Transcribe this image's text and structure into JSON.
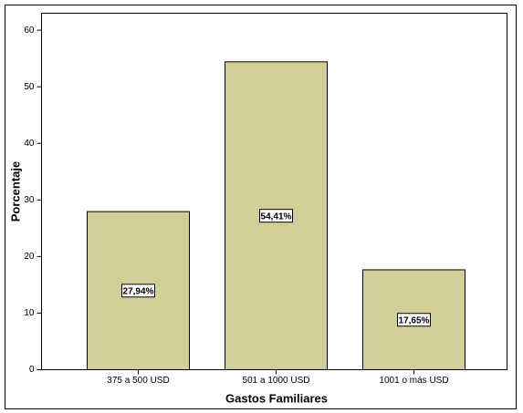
{
  "chart_data": {
    "type": "bar",
    "x_label": "Gastos Familiares",
    "y_label": "Porcentaje",
    "categories": [
      "375 a 500 USD",
      "501 a 1000 USD",
      "1001 o más USD"
    ],
    "values": [
      27.94,
      54.41,
      17.65
    ],
    "value_labels": [
      "27,94%",
      "54,41%",
      "17,65%"
    ],
    "color": "#d3ce97",
    "ylim": [
      0,
      63
    ],
    "yticks": [
      0,
      10,
      20,
      30,
      40,
      50,
      60
    ],
    "grid": false
  }
}
